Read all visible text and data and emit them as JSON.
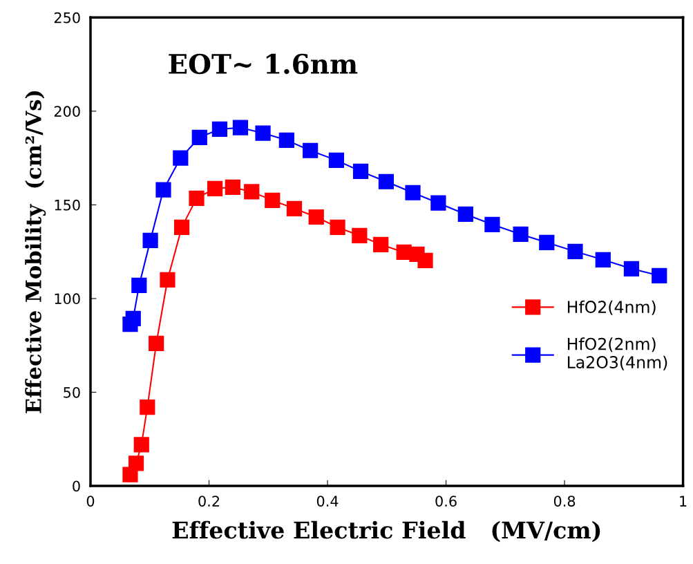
{
  "chart_data": {
    "type": "line",
    "xlabel": "Effective Electric Field   (MV/cm)",
    "ylabel": "Effective Mobility  (cm²/Vs)",
    "annotations": [
      "EOT~ 1.6nm"
    ],
    "xlim": [
      0,
      1
    ],
    "xticks": [
      0,
      0.2,
      0.4,
      0.6,
      0.8,
      1
    ],
    "ylim": [
      0,
      250
    ],
    "yticks": [
      0,
      50,
      100,
      150,
      200,
      250
    ],
    "grid": false,
    "legend": "right",
    "marker": "square",
    "line_style": "solid",
    "series": [
      {
        "name": "HfO2(4nm)",
        "color": "#ff0000",
        "x": [
          0.067,
          0.077,
          0.086,
          0.096,
          0.111,
          0.13,
          0.154,
          0.179,
          0.21,
          0.24,
          0.272,
          0.307,
          0.344,
          0.381,
          0.417,
          0.454,
          0.49,
          0.529,
          0.551,
          0.565
        ],
        "values": [
          6,
          12,
          22,
          42,
          76,
          110,
          138,
          153.5,
          158.7,
          159.4,
          157,
          152.4,
          148,
          143.5,
          138,
          133.6,
          128.8,
          124.7,
          123.6,
          120.3
        ]
      },
      {
        "name": "HfO2(2nm)\nLa2O3(4nm)",
        "color": "#0000ff",
        "x": [
          0.067,
          0.072,
          0.082,
          0.101,
          0.123,
          0.152,
          0.184,
          0.218,
          0.253,
          0.291,
          0.331,
          0.371,
          0.415,
          0.456,
          0.499,
          0.544,
          0.587,
          0.633,
          0.678,
          0.726,
          0.77,
          0.818,
          0.865,
          0.913,
          0.96
        ],
        "values": [
          86.3,
          89.3,
          107,
          131,
          158,
          175,
          186,
          190.4,
          191.2,
          188.3,
          184.5,
          179,
          173.8,
          167.9,
          162.4,
          156.5,
          151,
          145,
          139.5,
          134.3,
          129.9,
          125.1,
          120.7,
          115.9,
          112.2
        ]
      }
    ]
  }
}
